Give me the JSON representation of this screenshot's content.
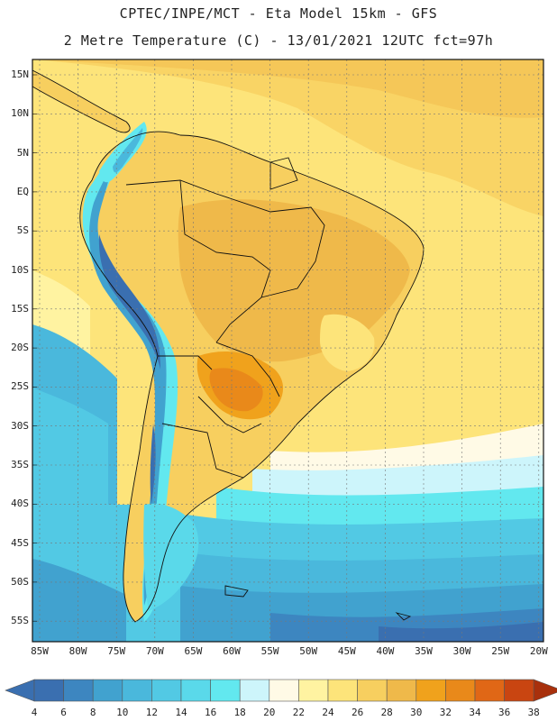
{
  "header": {
    "line1": "CPTEC/INPE/MCT -  Eta Model 15km - GFS",
    "line2": "2 Metre Temperature (C) - 13/01/2021 12UTC fct=97h"
  },
  "map": {
    "lat_labels": [
      "15N",
      "10N",
      "5N",
      "EQ",
      "5S",
      "10S",
      "15S",
      "20S",
      "25S",
      "30S",
      "35S",
      "40S",
      "45S",
      "50S",
      "55S"
    ],
    "lon_labels": [
      "85W",
      "80W",
      "75W",
      "70W",
      "65W",
      "60W",
      "55W",
      "50W",
      "45W",
      "40W",
      "35W",
      "30W",
      "25W",
      "20W"
    ]
  },
  "colorbar": {
    "levels": [
      "4",
      "6",
      "8",
      "10",
      "12",
      "14",
      "16",
      "18",
      "20",
      "22",
      "24",
      "26",
      "28",
      "30",
      "32",
      "34",
      "36",
      "38"
    ],
    "colors": [
      "#3a6fb0",
      "#3d86c0",
      "#41a2cf",
      "#4ab8dc",
      "#52c9e4",
      "#5ad9ea",
      "#62e8ef",
      "#cdf5fb",
      "#fffae6",
      "#fff3a1",
      "#fde47a",
      "#f7cf5f",
      "#efb94a",
      "#f0a21c",
      "#e9891a",
      "#e06716",
      "#c94511",
      "#a8300c"
    ]
  }
}
